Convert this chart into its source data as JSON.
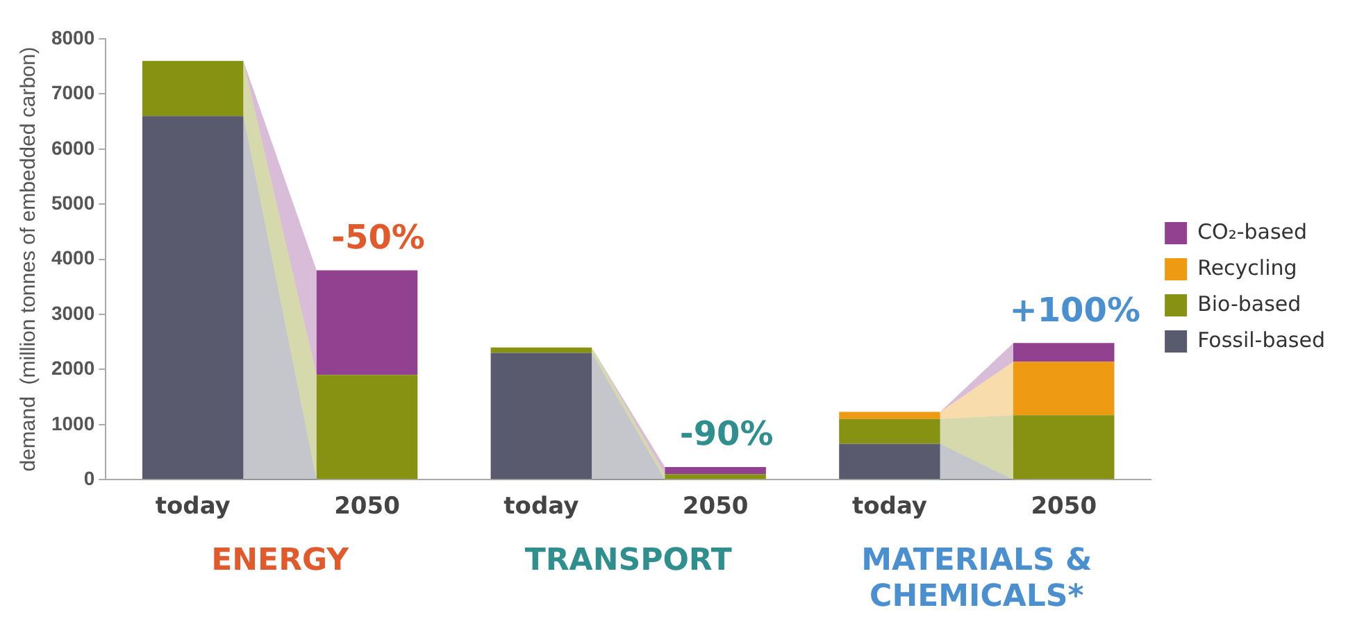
{
  "chart_data": {
    "type": "bar",
    "stacked": true,
    "ylabel": "demand  (million tonnes of embedded carbon)",
    "categories": [
      "today",
      "2050",
      "today",
      "2050",
      "today",
      "2050"
    ],
    "series": [
      {
        "name": "Fossil-based",
        "color": "#5a5a6e",
        "values": [
          6600,
          0,
          2300,
          0,
          650,
          0
        ]
      },
      {
        "name": "Bio-based",
        "color": "#879112",
        "values": [
          1000,
          1900,
          100,
          100,
          450,
          1170
        ]
      },
      {
        "name": "Recycling",
        "color": "#ee9a12",
        "values": [
          0,
          0,
          0,
          0,
          130,
          970
        ]
      },
      {
        "name": "CO₂-based",
        "color": "#91418f",
        "values": [
          0,
          1900,
          0,
          130,
          0,
          340
        ]
      }
    ],
    "ylim": [
      0,
      8000
    ],
    "yticks": [
      0,
      1000,
      2000,
      3000,
      4000,
      5000,
      6000,
      7000,
      8000
    ],
    "grid": false,
    "legend": "right",
    "annotations": [
      "-50%",
      "-90%",
      "+100%",
      "ENERGY",
      "TRANSPORT",
      "MATERIALS & CHEMICALS*"
    ]
  }
}
